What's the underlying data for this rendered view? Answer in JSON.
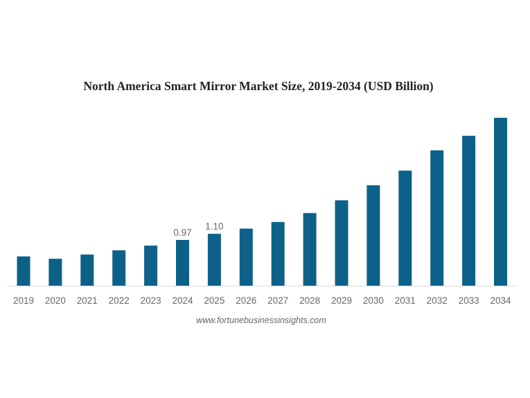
{
  "chart_data": {
    "type": "bar",
    "title": "North America Smart Mirror Market Size, 2019-2034 (USD Billion)",
    "xlabel": "",
    "ylabel": "",
    "categories": [
      "2019",
      "2020",
      "2021",
      "2022",
      "2023",
      "2024",
      "2025",
      "2026",
      "2027",
      "2028",
      "2029",
      "2030",
      "2031",
      "2032",
      "2033",
      "2034"
    ],
    "values": [
      0.62,
      0.57,
      0.66,
      0.75,
      0.85,
      0.97,
      1.1,
      1.21,
      1.35,
      1.54,
      1.81,
      2.13,
      2.44,
      2.87,
      3.18,
      3.56
    ],
    "data_labels": {
      "2024": "0.97",
      "2025": "1.10"
    },
    "ylim": [
      0,
      3.6
    ],
    "grid": false,
    "legend": "none",
    "bar_color": "#0d6189",
    "source": "www.fortunebusinessinsights.com"
  }
}
